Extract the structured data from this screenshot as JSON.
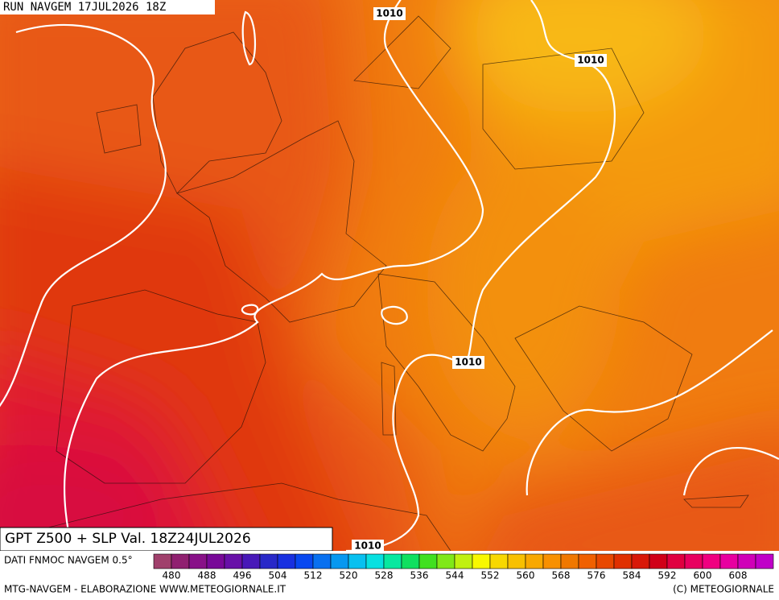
{
  "header": {
    "run": "RUN NAVGEM 17JUL2026 18Z"
  },
  "title": "GPT Z500 + SLP Val. 18Z24JUL2026",
  "isobars": {
    "labels": [
      "1010",
      "1010",
      "1010",
      "1010"
    ]
  },
  "scale": {
    "source": "DATI FNMOC NAVGEM 0.5°",
    "labels": [
      "480",
      "488",
      "496",
      "504",
      "512",
      "520",
      "528",
      "536",
      "544",
      "552",
      "560",
      "568",
      "576",
      "584",
      "592",
      "600",
      "608"
    ],
    "colors": [
      "#a0406c",
      "#902070",
      "#881088",
      "#780898",
      "#6810a8",
      "#4818b8",
      "#2828c8",
      "#1830e0",
      "#0848f0",
      "#0870f0",
      "#0898f0",
      "#08c0f0",
      "#08e0e0",
      "#08e8a0",
      "#10e060",
      "#40e020",
      "#80e818",
      "#c0f010",
      "#f8f800",
      "#f8d800",
      "#f8c000",
      "#f8a800",
      "#f89000",
      "#f07800",
      "#f06000",
      "#e84800",
      "#e03000",
      "#d81808",
      "#d00018",
      "#e00040",
      "#e80060",
      "#f00080",
      "#e800a0",
      "#d000b8",
      "#c000c8"
    ]
  },
  "footer": {
    "left": "MTG-NAVGEM - ELABORAZIONE WWW.METEOGIORNALE.IT",
    "right": "(C) METEOGIORNALE"
  }
}
